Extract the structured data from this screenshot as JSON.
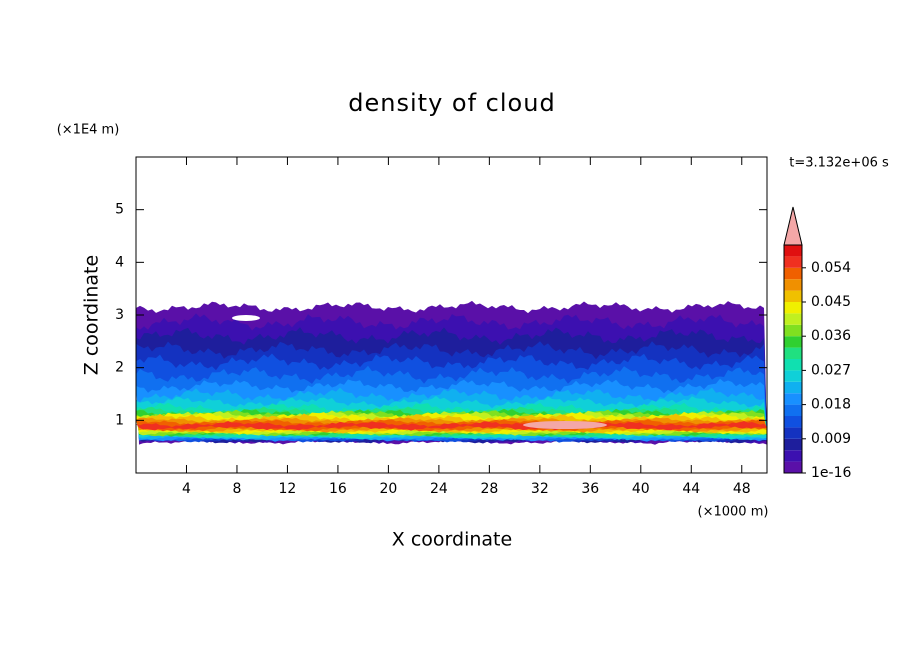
{
  "chart_data": {
    "type": "contour",
    "title": "density of cloud",
    "xlabel": "X coordinate",
    "ylabel": "Z coordinate",
    "x_unit": "(×1000 m)",
    "y_unit": "(×1E4 m)",
    "time_label": "t=3.132e+06 s",
    "xlim": [
      0,
      50
    ],
    "xticks": [
      4,
      8,
      12,
      16,
      20,
      24,
      28,
      32,
      36,
      40,
      44,
      48
    ],
    "ylim": [
      0,
      6
    ],
    "yticks": [
      1,
      2,
      3,
      4,
      5
    ],
    "colorbar": {
      "levels": [
        1e-16,
        0.003,
        0.006,
        0.009,
        0.012,
        0.015,
        0.018,
        0.021,
        0.024,
        0.027,
        0.03,
        0.033,
        0.036,
        0.039,
        0.042,
        0.045,
        0.048,
        0.051,
        0.054,
        0.057,
        0.06
      ],
      "colors": [
        "#5a10a8",
        "#3c10b0",
        "#1e1e9c",
        "#1432c0",
        "#1050e0",
        "#1070f0",
        "#1890ff",
        "#10b0f0",
        "#10d0d8",
        "#10e0b0",
        "#20e080",
        "#30d030",
        "#80e020",
        "#c0f020",
        "#f0f000",
        "#f0c000",
        "#f09000",
        "#f06000",
        "#f03020",
        "#e01010"
      ],
      "extend_color": "#f4a7a7",
      "ticks": [
        1e-16,
        0.009,
        0.018,
        0.027,
        0.036,
        0.045,
        0.054
      ]
    }
  }
}
